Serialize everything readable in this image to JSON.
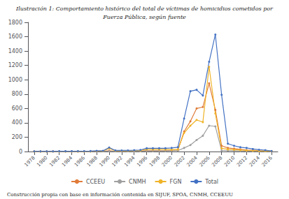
{
  "chart_data": {
    "type": "line",
    "title": "Ilustración 1: Comportamiento histórico del total de víctimas de homicidios cometidos por",
    "subtitle": "Fuerza Pública, según fuente",
    "annotations": [
      "Construcción propia con base en información contenida en SIJUF, SPOA, CNMH, CCEEUU"
    ],
    "x": [
      1978,
      1979,
      1980,
      1981,
      1982,
      1983,
      1984,
      1985,
      1986,
      1987,
      1988,
      1989,
      1990,
      1991,
      1992,
      1993,
      1994,
      1995,
      1996,
      1997,
      1998,
      1999,
      2000,
      2001,
      2002,
      2003,
      2004,
      2005,
      2006,
      2007,
      2008,
      2009,
      2010,
      2011,
      2012,
      2013,
      2014,
      2015,
      2016
    ],
    "series": [
      {
        "name": "CCEEU",
        "color": "#e07b39",
        "values": [
          2,
          2,
          2,
          2,
          3,
          3,
          3,
          3,
          3,
          4,
          5,
          5,
          12,
          5,
          5,
          5,
          5,
          8,
          10,
          10,
          10,
          12,
          15,
          20,
          280,
          420,
          600,
          620,
          950,
          580,
          80,
          50,
          40,
          30,
          20,
          15,
          10,
          8,
          5
        ]
      },
      {
        "name": "CNMH",
        "color": "#a0a0a0",
        "values": [
          1,
          1,
          1,
          1,
          1,
          1,
          1,
          1,
          2,
          2,
          3,
          3,
          5,
          3,
          3,
          3,
          3,
          5,
          8,
          8,
          8,
          8,
          10,
          12,
          50,
          90,
          160,
          220,
          360,
          350,
          15,
          12,
          10,
          8,
          6,
          5,
          4,
          3,
          2
        ]
      },
      {
        "name": "FGN",
        "color": "#f0b429",
        "values": [
          0,
          0,
          0,
          0,
          0,
          0,
          0,
          0,
          0,
          0,
          5,
          5,
          45,
          10,
          10,
          10,
          12,
          15,
          30,
          30,
          30,
          30,
          25,
          30,
          260,
          360,
          440,
          410,
          1180,
          530,
          45,
          30,
          25,
          20,
          15,
          12,
          8,
          6,
          4
        ]
      },
      {
        "name": "Total",
        "color": "#4472c4",
        "values": [
          3,
          3,
          3,
          3,
          4,
          4,
          4,
          5,
          5,
          6,
          10,
          10,
          55,
          15,
          15,
          15,
          18,
          22,
          45,
          45,
          45,
          45,
          50,
          60,
          460,
          840,
          860,
          780,
          1250,
          1630,
          790,
          110,
          80,
          60,
          50,
          35,
          25,
          18,
          8
        ]
      }
    ],
    "xlim": [
      1977,
      2017
    ],
    "xticks": [
      1978,
      1980,
      1982,
      1984,
      1986,
      1988,
      1990,
      1992,
      1994,
      1996,
      1998,
      2000,
      2002,
      2004,
      2006,
      2008,
      2010,
      2012,
      2014,
      2016
    ],
    "ylim": [
      0,
      1800
    ],
    "yticks": [
      0,
      200,
      400,
      600,
      800,
      1000,
      1200,
      1400,
      1600,
      1800
    ],
    "grid": false,
    "legend": "bottom",
    "marker": "circle"
  }
}
